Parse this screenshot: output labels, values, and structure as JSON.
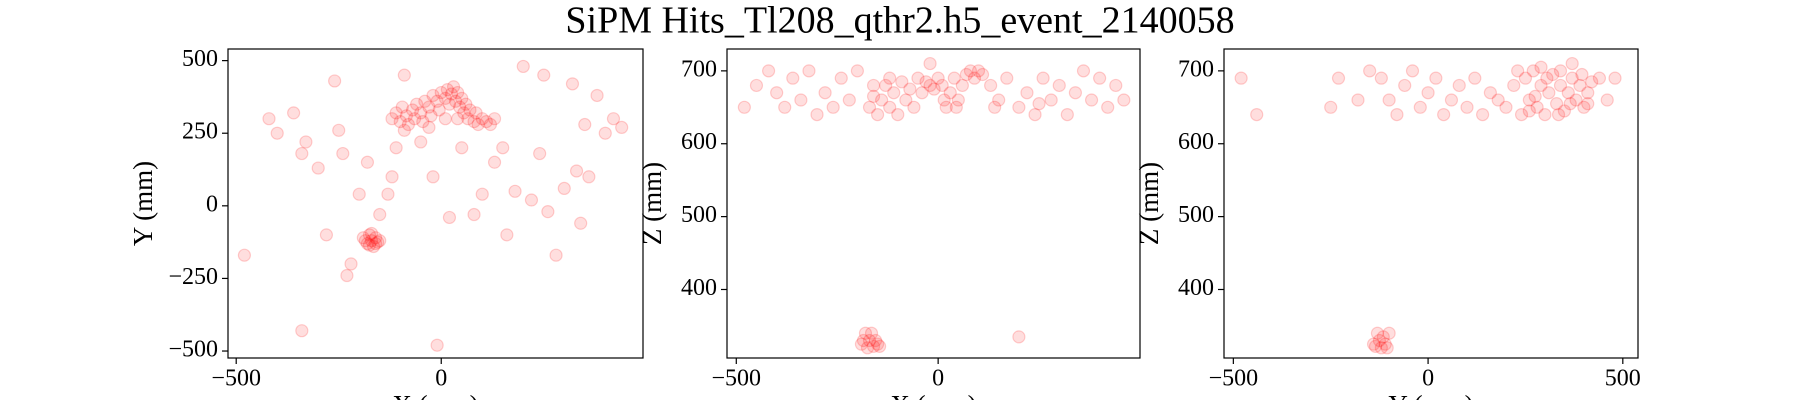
{
  "title": "SiPM Hits_Tl208_qthr2.h5_event_2140058",
  "chart_data": [
    {
      "type": "scatter",
      "xlabel": "X (mm)",
      "ylabel": "Y (mm)",
      "color": "red",
      "alpha": 0.13,
      "xlim": [
        -520,
        492
      ],
      "ylim": [
        -524,
        540
      ],
      "xticks": [
        {
          "value": -500,
          "label": "−500"
        },
        0
      ],
      "yticks": [
        {
          "value": -500,
          "label": "−500"
        },
        {
          "value": -250,
          "label": "−250"
        },
        0,
        250,
        500
      ],
      "x": [
        -120,
        -110,
        -100,
        -95,
        -85,
        -80,
        -70,
        -65,
        -60,
        -50,
        -45,
        -40,
        -30,
        -25,
        -20,
        -10,
        -5,
        0,
        10,
        15,
        20,
        25,
        30,
        35,
        40,
        45,
        50,
        55,
        60,
        65,
        70,
        80,
        85,
        90,
        100,
        110,
        120,
        130,
        -90,
        40,
        10,
        -30,
        -190,
        -180,
        -175,
        -170,
        -165,
        -160,
        -155,
        -185,
        -170,
        -150,
        -175,
        -160,
        -480,
        -420,
        -400,
        -360,
        -340,
        -330,
        -300,
        -280,
        -260,
        -250,
        -230,
        -220,
        -200,
        -180,
        -150,
        -130,
        -110,
        -90,
        -50,
        -20,
        -10,
        20,
        50,
        80,
        100,
        130,
        150,
        160,
        180,
        200,
        220,
        240,
        250,
        260,
        280,
        300,
        320,
        330,
        340,
        350,
        360,
        380,
        400,
        420,
        440,
        -340,
        -240,
        -120
      ],
      "values": [
        300,
        320,
        290,
        340,
        310,
        280,
        330,
        300,
        350,
        320,
        290,
        360,
        340,
        310,
        380,
        360,
        330,
        390,
        370,
        400,
        350,
        385,
        410,
        360,
        390,
        340,
        370,
        320,
        350,
        300,
        330,
        290,
        320,
        280,
        300,
        290,
        280,
        300,
        260,
        300,
        300,
        270,
        -110,
        -130,
        -100,
        -120,
        -140,
        -110,
        -125,
        -120,
        -95,
        -120,
        -135,
        -130,
        -170,
        300,
        250,
        320,
        180,
        220,
        130,
        -100,
        430,
        260,
        -240,
        -200,
        40,
        150,
        -30,
        40,
        200,
        450,
        220,
        100,
        -480,
        -40,
        200,
        -30,
        40,
        150,
        200,
        -100,
        50,
        480,
        20,
        180,
        450,
        -20,
        -170,
        60,
        420,
        120,
        -60,
        280,
        100,
        380,
        250,
        300,
        270,
        -430,
        180,
        100
      ]
    },
    {
      "type": "scatter",
      "xlabel": "X (mm)",
      "ylabel": "Z (mm)",
      "color": "red",
      "alpha": 0.13,
      "xlim": [
        -523,
        500
      ],
      "ylim": [
        306,
        730
      ],
      "xticks": [
        {
          "value": -500,
          "label": "−500"
        },
        0
      ],
      "yticks": [
        400,
        500,
        600,
        700
      ],
      "x": [
        -170,
        -160,
        -150,
        -140,
        -130,
        -120,
        -110,
        -100,
        -90,
        -80,
        -70,
        -60,
        -50,
        -40,
        -30,
        -20,
        -10,
        0,
        10,
        15,
        20,
        30,
        40,
        50,
        60,
        70,
        80,
        90,
        100,
        110,
        45,
        -120,
        -160,
        -190,
        -180,
        -175,
        -170,
        -165,
        -160,
        -155,
        -150,
        -185,
        -145,
        -480,
        -450,
        -420,
        -400,
        -380,
        -360,
        -340,
        -320,
        -300,
        -280,
        -260,
        -240,
        -220,
        -200,
        -20,
        130,
        150,
        170,
        200,
        220,
        240,
        260,
        280,
        300,
        320,
        340,
        360,
        380,
        400,
        420,
        440,
        460,
        200,
        250,
        140
      ],
      "values": [
        650,
        665,
        640,
        660,
        680,
        650,
        670,
        640,
        685,
        660,
        675,
        650,
        690,
        670,
        685,
        680,
        675,
        690,
        680,
        660,
        650,
        670,
        690,
        660,
        680,
        695,
        700,
        690,
        700,
        695,
        650,
        690,
        680,
        325,
        340,
        320,
        330,
        340,
        322,
        330,
        325,
        330,
        322,
        650,
        680,
        700,
        670,
        650,
        690,
        660,
        700,
        640,
        670,
        650,
        690,
        660,
        700,
        710,
        680,
        660,
        690,
        650,
        670,
        640,
        690,
        660,
        680,
        640,
        670,
        700,
        660,
        690,
        650,
        680,
        660,
        335,
        655,
        650
      ]
    },
    {
      "type": "scatter",
      "xlabel": "Y (mm)",
      "ylabel": "Z (mm)",
      "color": "red",
      "alpha": 0.13,
      "xlim": [
        -524,
        539
      ],
      "ylim": [
        306,
        730
      ],
      "xticks": [
        {
          "value": -500,
          "label": "−500"
        },
        0,
        500
      ],
      "yticks": [
        400,
        500,
        600,
        700
      ],
      "x": [
        250,
        260,
        270,
        280,
        290,
        300,
        310,
        320,
        330,
        340,
        350,
        360,
        370,
        380,
        390,
        400,
        410,
        420,
        275,
        305,
        335,
        365,
        395,
        290,
        340,
        260,
        410,
        -140,
        -130,
        -120,
        -115,
        -110,
        -100,
        -125,
        -105,
        -135,
        -480,
        -440,
        -250,
        -230,
        -180,
        -150,
        -120,
        -100,
        -80,
        -60,
        -40,
        -20,
        0,
        20,
        40,
        60,
        80,
        100,
        120,
        140,
        160,
        180,
        200,
        220,
        240,
        440,
        460,
        480,
        370,
        230
      ],
      "values": [
        690,
        660,
        700,
        650,
        680,
        640,
        670,
        695,
        655,
        680,
        645,
        670,
        690,
        660,
        680,
        650,
        670,
        685,
        665,
        690,
        640,
        655,
        695,
        705,
        700,
        645,
        655,
        325,
        340,
        320,
        335,
        325,
        340,
        330,
        320,
        322,
        690,
        640,
        650,
        690,
        660,
        700,
        690,
        660,
        640,
        680,
        700,
        650,
        670,
        690,
        640,
        660,
        680,
        650,
        690,
        640,
        670,
        660,
        650,
        680,
        640,
        690,
        660,
        690,
        710,
        700
      ]
    }
  ]
}
